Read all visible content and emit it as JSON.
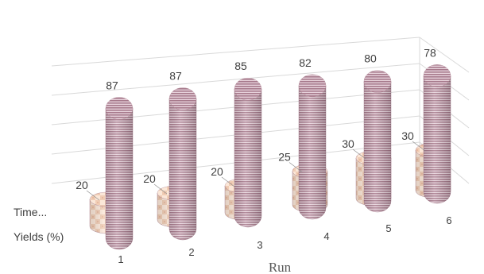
{
  "chart_data": {
    "type": "bar",
    "subtype": "3d-cylinder",
    "title": "",
    "xlabel": "Run",
    "ylabel": "",
    "categories": [
      "1",
      "2",
      "3",
      "4",
      "5",
      "6"
    ],
    "series": [
      {
        "name": "Time...",
        "values": [
          20,
          20,
          20,
          25,
          30,
          30
        ],
        "color": "#f5d9c4",
        "pattern": "checker"
      },
      {
        "name": "Yields (%)",
        "values": [
          87,
          87,
          85,
          82,
          80,
          78
        ],
        "color": "#c9a0b0",
        "pattern": "fine-stripe"
      }
    ],
    "ylim": [
      0,
      100
    ],
    "grid": true,
    "data_labels": true
  }
}
